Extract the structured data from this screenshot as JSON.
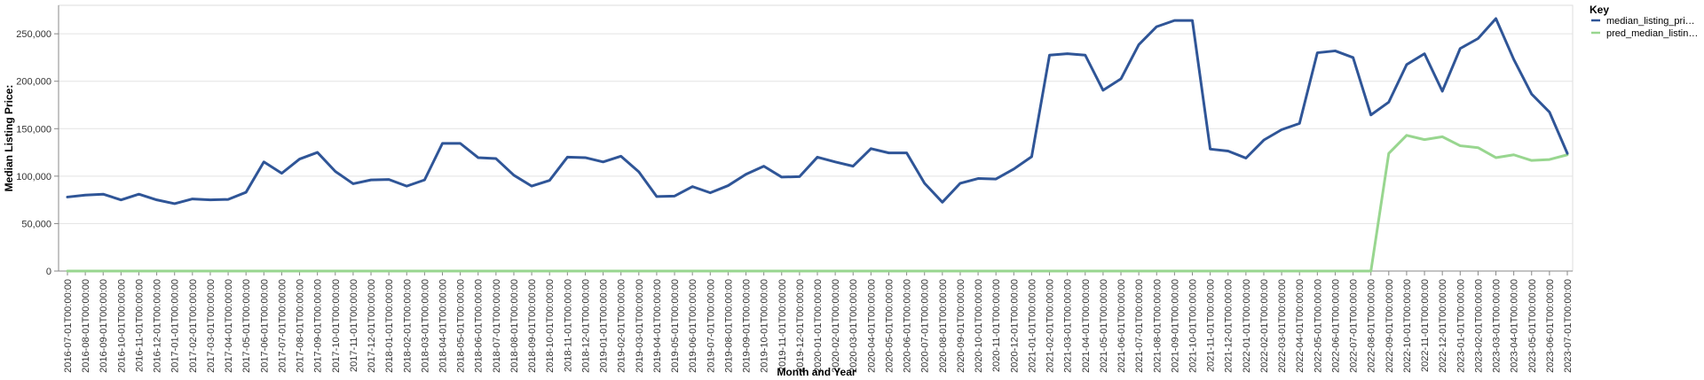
{
  "chart_data": {
    "type": "line",
    "xlabel": "Month and Year",
    "ylabel": "Median Listing Price:",
    "ylim": [
      0,
      280000
    ],
    "yticks": [
      0,
      50000,
      100000,
      150000,
      200000,
      250000
    ],
    "ytick_labels": [
      "0",
      "50,000",
      "100,000",
      "150,000",
      "200,000",
      "250,000"
    ],
    "grid": true,
    "legend": {
      "title": "Key",
      "placement": "top-right",
      "entries": [
        "median_listing_pri…",
        "pred_median_listin…"
      ]
    },
    "x": [
      "2016-07-01T00:00:00",
      "2016-08-01T00:00:00",
      "2016-09-01T00:00:00",
      "2016-10-01T00:00:00",
      "2016-11-01T00:00:00",
      "2016-12-01T00:00:00",
      "2017-01-01T00:00:00",
      "2017-02-01T00:00:00",
      "2017-03-01T00:00:00",
      "2017-04-01T00:00:00",
      "2017-05-01T00:00:00",
      "2017-06-01T00:00:00",
      "2017-07-01T00:00:00",
      "2017-08-01T00:00:00",
      "2017-09-01T00:00:00",
      "2017-10-01T00:00:00",
      "2017-11-01T00:00:00",
      "2017-12-01T00:00:00",
      "2018-01-01T00:00:00",
      "2018-02-01T00:00:00",
      "2018-03-01T00:00:00",
      "2018-04-01T00:00:00",
      "2018-05-01T00:00:00",
      "2018-06-01T00:00:00",
      "2018-07-01T00:00:00",
      "2018-08-01T00:00:00",
      "2018-09-01T00:00:00",
      "2018-10-01T00:00:00",
      "2018-11-01T00:00:00",
      "2018-12-01T00:00:00",
      "2019-01-01T00:00:00",
      "2019-02-01T00:00:00",
      "2019-03-01T00:00:00",
      "2019-04-01T00:00:00",
      "2019-05-01T00:00:00",
      "2019-06-01T00:00:00",
      "2019-07-01T00:00:00",
      "2019-08-01T00:00:00",
      "2019-09-01T00:00:00",
      "2019-10-01T00:00:00",
      "2019-11-01T00:00:00",
      "2019-12-01T00:00:00",
      "2020-01-01T00:00:00",
      "2020-02-01T00:00:00",
      "2020-03-01T00:00:00",
      "2020-04-01T00:00:00",
      "2020-05-01T00:00:00",
      "2020-06-01T00:00:00",
      "2020-07-01T00:00:00",
      "2020-08-01T00:00:00",
      "2020-09-01T00:00:00",
      "2020-10-01T00:00:00",
      "2020-11-01T00:00:00",
      "2020-12-01T00:00:00",
      "2021-01-01T00:00:00",
      "2021-02-01T00:00:00",
      "2021-03-01T00:00:00",
      "2021-04-01T00:00:00",
      "2021-05-01T00:00:00",
      "2021-06-01T00:00:00",
      "2021-07-01T00:00:00",
      "2021-08-01T00:00:00",
      "2021-09-01T00:00:00",
      "2021-10-01T00:00:00",
      "2021-11-01T00:00:00",
      "2021-12-01T00:00:00",
      "2022-01-01T00:00:00",
      "2022-02-01T00:00:00",
      "2022-03-01T00:00:00",
      "2022-04-01T00:00:00",
      "2022-05-01T00:00:00",
      "2022-06-01T00:00:00",
      "2022-07-01T00:00:00",
      "2022-08-01T00:00:00",
      "2022-09-01T00:00:00",
      "2022-10-01T00:00:00",
      "2022-11-01T00:00:00",
      "2022-12-01T00:00:00",
      "2023-01-01T00:00:00",
      "2023-02-01T00:00:00",
      "2023-03-01T00:00:00",
      "2023-04-01T00:00:00",
      "2023-05-01T00:00:00",
      "2023-06-01T00:00:00",
      "2023-07-01T00:00:00"
    ],
    "series": [
      {
        "name": "median_listing_pri…",
        "color": "#2f5597",
        "values": [
          78000,
          80000,
          81000,
          75000,
          81000,
          75000,
          71000,
          76000,
          75000,
          75500,
          83000,
          115000,
          103000,
          118000,
          125000,
          105000,
          92000,
          96000,
          96500,
          89500,
          96000,
          134500,
          134500,
          119500,
          118500,
          101000,
          89500,
          95500,
          120000,
          119500,
          115000,
          121000,
          104500,
          78500,
          79000,
          89000,
          82500,
          90000,
          102000,
          110500,
          99000,
          99500,
          120000,
          115000,
          110500,
          129000,
          124500,
          124500,
          92500,
          72500,
          92500,
          97500,
          97000,
          107500,
          120500,
          227500,
          229000,
          227500,
          190500,
          202500,
          238500,
          257500,
          264000,
          264000,
          128500,
          126500,
          119000,
          138000,
          149000,
          155500,
          230000,
          232000,
          225000,
          164500,
          178000,
          217500,
          229000,
          189500,
          234500,
          245000,
          266000,
          223000,
          186500,
          167500,
          124000
        ]
      },
      {
        "name": "pred_median_listin…",
        "color": "#98d68f",
        "values": [
          0,
          0,
          0,
          0,
          0,
          0,
          0,
          0,
          0,
          0,
          0,
          0,
          0,
          0,
          0,
          0,
          0,
          0,
          0,
          0,
          0,
          0,
          0,
          0,
          0,
          0,
          0,
          0,
          0,
          0,
          0,
          0,
          0,
          0,
          0,
          0,
          0,
          0,
          0,
          0,
          0,
          0,
          0,
          0,
          0,
          0,
          0,
          0,
          0,
          0,
          0,
          0,
          0,
          0,
          0,
          0,
          0,
          0,
          0,
          0,
          0,
          0,
          0,
          0,
          0,
          0,
          0,
          0,
          0,
          0,
          0,
          0,
          0,
          0,
          124000,
          143000,
          138500,
          141500,
          132000,
          130000,
          119500,
          122500,
          116500,
          117500,
          122500
        ]
      }
    ]
  }
}
